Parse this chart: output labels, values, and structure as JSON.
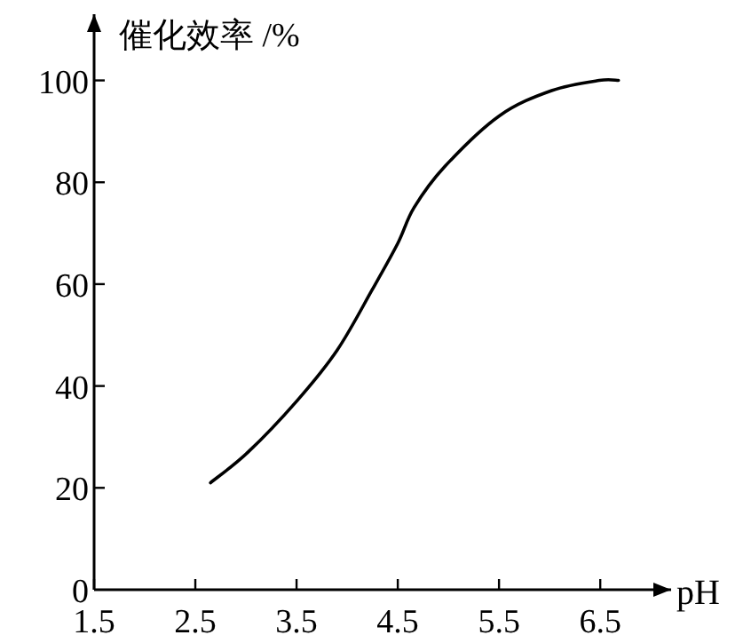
{
  "chart_data": {
    "type": "line",
    "xlabel": "pH",
    "ylabel": "催化效率 /%",
    "x": [
      2.65,
      3.02,
      3.5,
      3.9,
      4.25,
      4.5,
      4.66,
      4.96,
      5.5,
      6.02,
      6.49,
      6.68
    ],
    "series": [
      {
        "color": "#000000",
        "values": [
          21,
          27,
          37,
          47,
          59,
          68,
          75,
          83,
          93,
          98,
          100,
          100
        ]
      }
    ],
    "xlim": [
      1.5,
      7.2
    ],
    "ylim": [
      0,
      113
    ],
    "xticks": [
      1.5,
      2.5,
      3.5,
      4.5,
      5.5,
      6.5
    ],
    "yticks": [
      0,
      20,
      40,
      60,
      80,
      100
    ]
  }
}
